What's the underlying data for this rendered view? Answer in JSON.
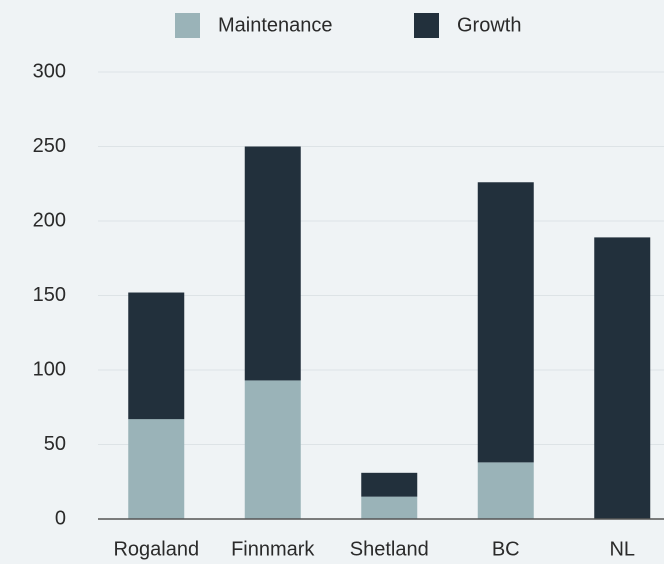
{
  "chart_data": {
    "type": "stacked_bar",
    "categories": [
      "Rogaland",
      "Finnmark",
      "Shetland",
      "BC",
      "NL"
    ],
    "series": [
      {
        "name": "Maintenance",
        "color": "#9ab3b8",
        "values": [
          67,
          93,
          15,
          38,
          0
        ]
      },
      {
        "name": "Growth",
        "color": "#22303c",
        "values": [
          85,
          157,
          16,
          188,
          189
        ]
      }
    ],
    "ylim": [
      0,
      300
    ],
    "yticks": [
      0,
      50,
      100,
      150,
      200,
      250,
      300
    ],
    "grid": true,
    "legend": "top"
  }
}
